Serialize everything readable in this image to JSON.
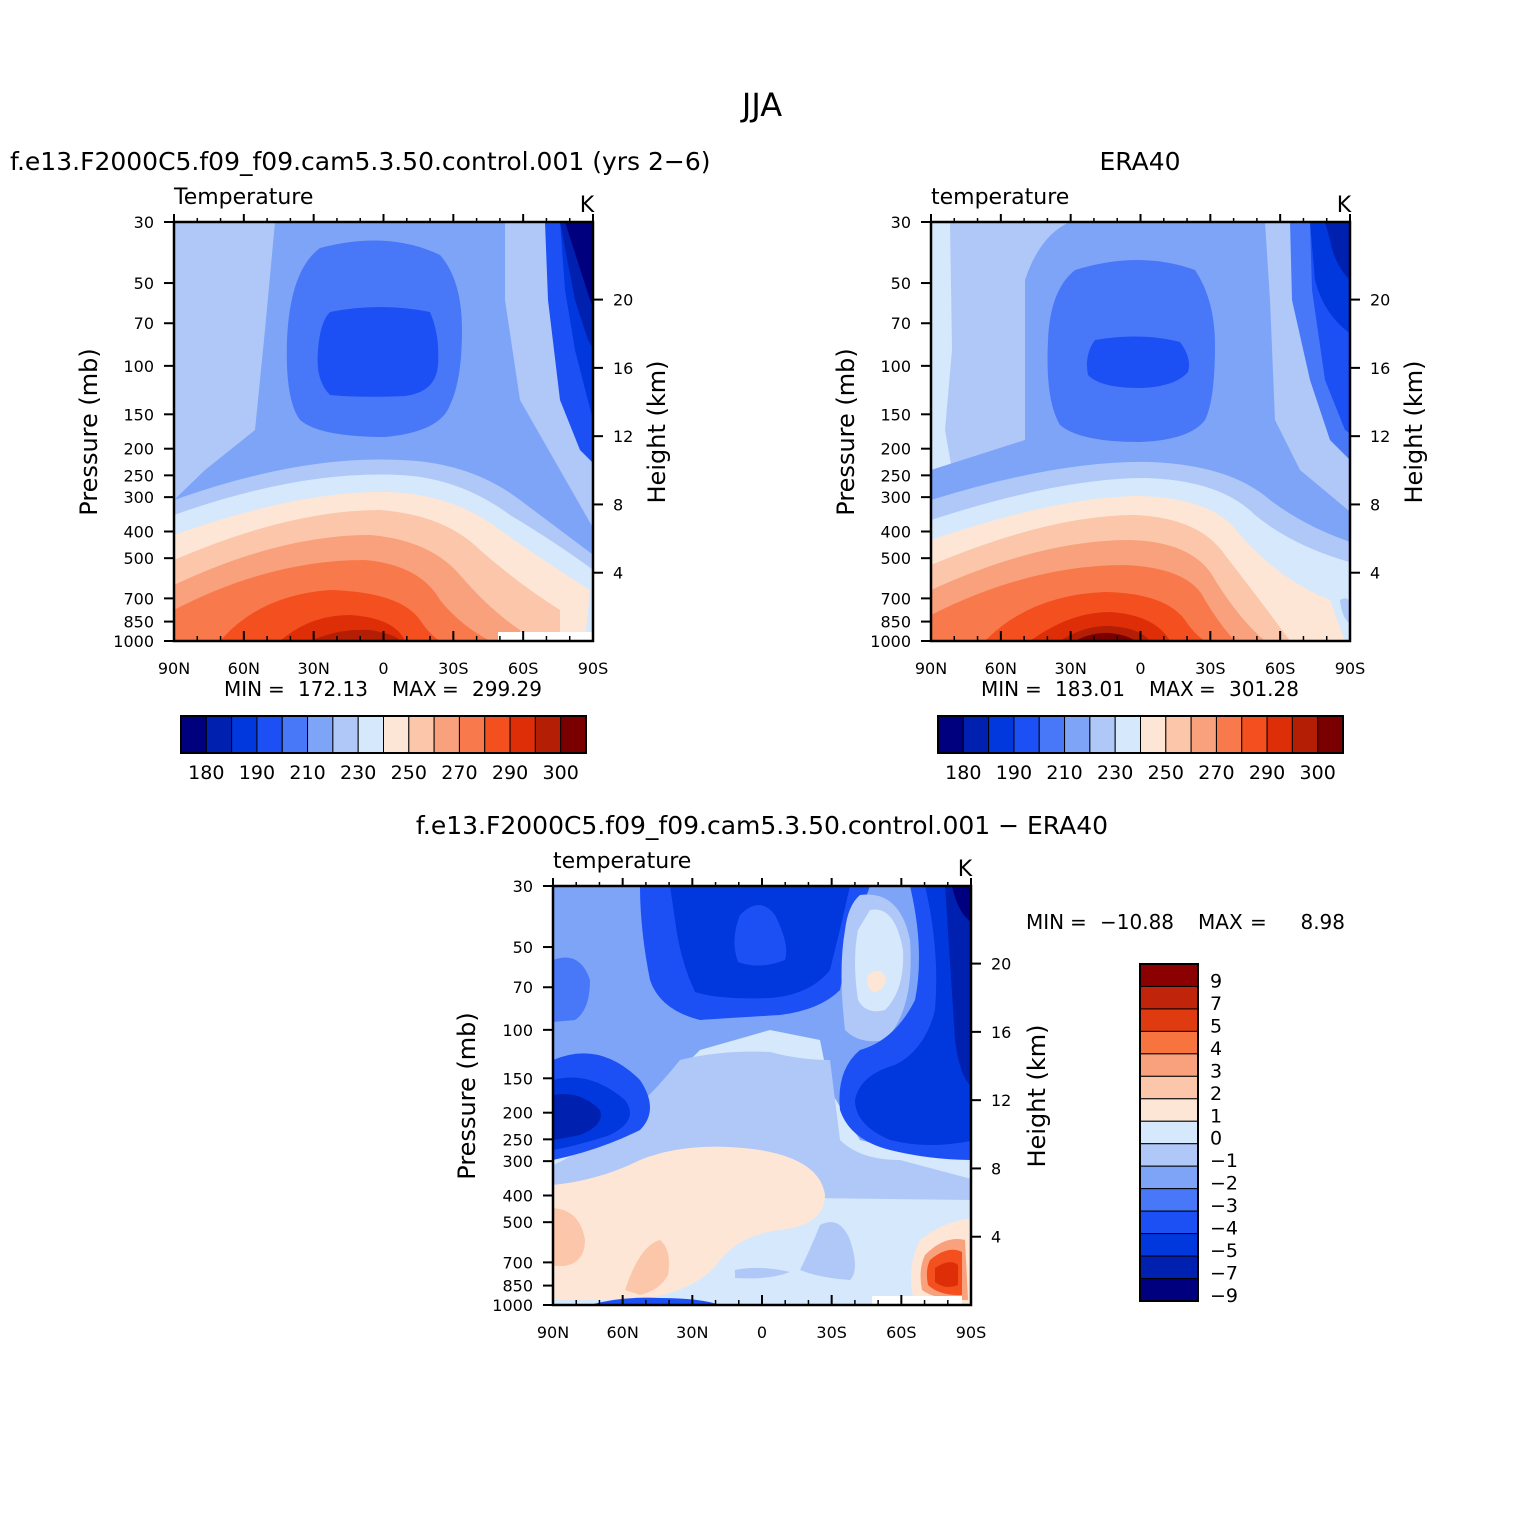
{
  "figure": {
    "title": "JJA"
  },
  "chart_data": [
    {
      "type": "heatmap",
      "title": "f.e13.F2000C5.f09_f09.cam5.3.50.control.001 (yrs 2−6)",
      "variable": "Temperature",
      "units": "K",
      "ylabel": "Pressure (mb)",
      "y2label": "Height (km)",
      "x_ticks": [
        "90N",
        "60N",
        "30N",
        "0",
        "30S",
        "60S",
        "90S"
      ],
      "y_ticks": [
        "30",
        "50",
        "70",
        "100",
        "150",
        "200",
        "250",
        "300",
        "400",
        "500",
        "700",
        "850",
        "1000"
      ],
      "y2_ticks": [
        "20",
        "16",
        "12",
        "8",
        "4"
      ],
      "stats": {
        "min_label": "MIN",
        "min": "172.13",
        "max_label": "MAX",
        "max": "299.29"
      },
      "colorbar_labels": [
        "180",
        "190",
        "210",
        "230",
        "250",
        "270",
        "290",
        "300"
      ],
      "colorbar_colors": [
        "#00007f",
        "#0020b0",
        "#0038dd",
        "#1c50f5",
        "#4878f8",
        "#7ea4f8",
        "#b0c8f8",
        "#d6e8fb",
        "#fde6d6",
        "#fbc6aa",
        "#f9a07c",
        "#f87a4c",
        "#f44f1e",
        "#de2e08",
        "#b41e04",
        "#7a0000"
      ],
      "grid": false
    },
    {
      "type": "heatmap",
      "title": "ERA40",
      "variable": "temperature",
      "units": "K",
      "ylabel": "Pressure (mb)",
      "y2label": "Height (km)",
      "x_ticks": [
        "90N",
        "60N",
        "30N",
        "0",
        "30S",
        "60S",
        "90S"
      ],
      "y_ticks": [
        "30",
        "50",
        "70",
        "100",
        "150",
        "200",
        "250",
        "300",
        "400",
        "500",
        "700",
        "850",
        "1000"
      ],
      "y2_ticks": [
        "20",
        "16",
        "12",
        "8",
        "4"
      ],
      "stats": {
        "min_label": "MIN",
        "min": "183.01",
        "max_label": "MAX",
        "max": "301.28"
      },
      "colorbar_labels": [
        "180",
        "190",
        "210",
        "230",
        "250",
        "270",
        "290",
        "300"
      ],
      "colorbar_colors": [
        "#00007f",
        "#0020b0",
        "#0038dd",
        "#1c50f5",
        "#4878f8",
        "#7ea4f8",
        "#b0c8f8",
        "#d6e8fb",
        "#fde6d6",
        "#fbc6aa",
        "#f9a07c",
        "#f87a4c",
        "#f44f1e",
        "#de2e08",
        "#b41e04",
        "#7a0000"
      ],
      "grid": false
    },
    {
      "type": "heatmap",
      "title": "f.e13.F2000C5.f09_f09.cam5.3.50.control.001 − ERA40",
      "variable": "temperature",
      "units": "K",
      "ylabel": "Pressure (mb)",
      "y2label": "Height (km)",
      "x_ticks": [
        "90N",
        "60N",
        "30N",
        "0",
        "30S",
        "60S",
        "90S"
      ],
      "y_ticks": [
        "30",
        "50",
        "70",
        "100",
        "150",
        "200",
        "250",
        "300",
        "400",
        "500",
        "700",
        "850",
        "1000"
      ],
      "y2_ticks": [
        "20",
        "16",
        "12",
        "8",
        "4"
      ],
      "stats": {
        "min_label": "MIN",
        "min": "−10.88",
        "max_label": "MAX",
        "max": "8.98"
      },
      "colorbar_labels": [
        "9",
        "7",
        "5",
        "4",
        "3",
        "2",
        "1",
        "0",
        "−1",
        "−2",
        "−3",
        "−4",
        "−5",
        "−7",
        "−9"
      ],
      "colorbar_colors": [
        "#8b0000",
        "#c0240a",
        "#e03a10",
        "#f8743e",
        "#f9a07c",
        "#fbc6aa",
        "#fde6d6",
        "#d6e8fb",
        "#b0c8f8",
        "#7ea4f8",
        "#4878f8",
        "#1c50f5",
        "#0038dd",
        "#0020b0",
        "#00007f"
      ],
      "grid": false
    }
  ]
}
